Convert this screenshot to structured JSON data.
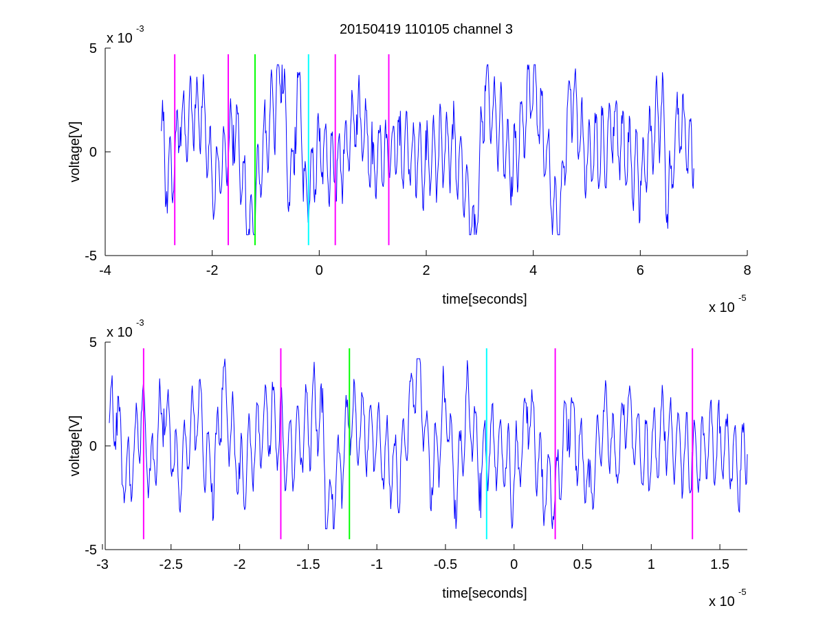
{
  "figure": {
    "title": "20150419 110105 channel 3"
  },
  "chart_data": [
    {
      "type": "line",
      "title": "20150419 110105 channel 3",
      "xlabel": "time[seconds]",
      "ylabel": "voltage[V]",
      "x_exponent_label": "x 10",
      "x_exponent": "-5",
      "y_exponent_label": "x 10",
      "y_exponent": "-3",
      "xlim": [
        -4,
        8
      ],
      "ylim": [
        -5,
        5
      ],
      "xticks": [
        -4,
        -2,
        0,
        2,
        4,
        6,
        8
      ],
      "xtick_labels": [
        "-4",
        "-2",
        "0",
        "2",
        "4",
        "6",
        "8"
      ],
      "yticks": [
        -5,
        0,
        5
      ],
      "ytick_labels": [
        "-5",
        "0",
        "5"
      ],
      "grid": false,
      "signal": {
        "color": "#0000ff",
        "x_start": -2.95,
        "x_end": 7.0,
        "y_min": -4.0,
        "y_max": 4.2,
        "anchors": [
          [
            -2.95,
            1.0
          ],
          [
            -2.85,
            -1.9
          ],
          [
            -2.6,
            1.2
          ],
          [
            -2.2,
            2.2
          ],
          [
            -2.0,
            -1.6
          ],
          [
            -1.6,
            1.3
          ],
          [
            -1.3,
            -4.0
          ],
          [
            -1.0,
            0.9
          ],
          [
            -0.7,
            4.2
          ],
          [
            -0.55,
            -2.6
          ],
          [
            -0.45,
            1.2
          ],
          [
            -0.35,
            3.3
          ],
          [
            -0.3,
            -2.4
          ],
          [
            0.0,
            0.5
          ],
          [
            0.3,
            -1.2
          ],
          [
            0.7,
            1.8
          ],
          [
            1.0,
            -0.6
          ],
          [
            1.5,
            0.3
          ],
          [
            2.0,
            -0.4
          ],
          [
            2.5,
            0.6
          ],
          [
            2.9,
            -4.0
          ],
          [
            3.1,
            3.2
          ],
          [
            3.6,
            -1.2
          ],
          [
            4.0,
            3.7
          ],
          [
            4.45,
            -3.8
          ],
          [
            4.7,
            3.0
          ],
          [
            5.0,
            -0.7
          ],
          [
            5.5,
            1.2
          ],
          [
            6.0,
            -1.4
          ],
          [
            6.4,
            2.4
          ],
          [
            6.5,
            -3.0
          ],
          [
            6.7,
            1.8
          ],
          [
            7.0,
            -0.8
          ]
        ]
      },
      "vlines": [
        {
          "x": -2.7,
          "color": "#ff00ff",
          "ymin": -4.5,
          "ymax": 4.7
        },
        {
          "x": -1.7,
          "color": "#ff00ff",
          "ymin": -4.5,
          "ymax": 4.7
        },
        {
          "x": -1.2,
          "color": "#00ff00",
          "ymin": -4.5,
          "ymax": 4.7
        },
        {
          "x": -0.2,
          "color": "#00ffff",
          "ymin": -4.5,
          "ymax": 4.7
        },
        {
          "x": 0.3,
          "color": "#ff00ff",
          "ymin": -4.5,
          "ymax": 4.7
        },
        {
          "x": 1.3,
          "color": "#ff00ff",
          "ymin": -4.5,
          "ymax": 4.7
        }
      ]
    },
    {
      "type": "line",
      "title": "",
      "xlabel": "time[seconds]",
      "ylabel": "voltage[V]",
      "x_exponent_label": "x 10",
      "x_exponent": "-5",
      "y_exponent_label": "x 10",
      "y_exponent": "-3",
      "xlim": [
        -2.98,
        1.7
      ],
      "ylim": [
        -5,
        5
      ],
      "xticks": [
        -3,
        -2.5,
        -2,
        -1.5,
        -1,
        -0.5,
        0,
        0.5,
        1,
        1.5
      ],
      "xtick_labels": [
        "-3",
        "-2.5",
        "-2",
        "-1.5",
        "-1",
        "-0.5",
        "0",
        "0.5",
        "1",
        "1.5"
      ],
      "yticks": [
        -5,
        0,
        5
      ],
      "ytick_labels": [
        "-5",
        "0",
        "5"
      ],
      "grid": false,
      "signal": {
        "color": "#0000ff",
        "x_start": -2.95,
        "x_end": 1.7,
        "y_min": -4.0,
        "y_max": 4.2,
        "anchors": [
          [
            -2.95,
            1.1
          ],
          [
            -2.9,
            1.6
          ],
          [
            -2.83,
            -2.1
          ],
          [
            -2.72,
            1.6
          ],
          [
            -2.65,
            -1.2
          ],
          [
            -2.55,
            1.8
          ],
          [
            -2.45,
            -1.5
          ],
          [
            -2.3,
            1.9
          ],
          [
            -2.2,
            -1.8
          ],
          [
            -2.13,
            2.8
          ],
          [
            -2.0,
            -1.6
          ],
          [
            -1.8,
            1.6
          ],
          [
            -1.65,
            -0.3
          ],
          [
            -1.4,
            1.6
          ],
          [
            -1.37,
            -4.0
          ],
          [
            -1.2,
            1.3
          ],
          [
            -1.0,
            0.2
          ],
          [
            -0.85,
            -1.6
          ],
          [
            -0.7,
            4.2
          ],
          [
            -0.6,
            -2.0
          ],
          [
            -0.5,
            2.3
          ],
          [
            -0.43,
            -2.6
          ],
          [
            -0.35,
            2.4
          ],
          [
            -0.25,
            -1.3
          ],
          [
            -0.15,
            0.5
          ],
          [
            0.0,
            -1.7
          ],
          [
            0.1,
            1.9
          ],
          [
            0.2,
            -1.5
          ],
          [
            0.3,
            -2.3
          ],
          [
            0.4,
            1.3
          ],
          [
            0.55,
            -2.0
          ],
          [
            0.65,
            1.7
          ],
          [
            0.75,
            -1.4
          ],
          [
            0.8,
            2.0
          ],
          [
            0.95,
            -0.5
          ],
          [
            1.1,
            0.7
          ],
          [
            1.3,
            -0.5
          ],
          [
            1.5,
            0.6
          ],
          [
            1.65,
            -1.2
          ],
          [
            1.7,
            -0.4
          ]
        ]
      },
      "vlines": [
        {
          "x": -2.7,
          "color": "#ff00ff",
          "ymin": -4.5,
          "ymax": 4.7
        },
        {
          "x": -1.7,
          "color": "#ff00ff",
          "ymin": -4.5,
          "ymax": 4.7
        },
        {
          "x": -1.2,
          "color": "#00ff00",
          "ymin": -4.5,
          "ymax": 4.7
        },
        {
          "x": -0.2,
          "color": "#00ffff",
          "ymin": -4.5,
          "ymax": 4.7
        },
        {
          "x": 0.3,
          "color": "#ff00ff",
          "ymin": -4.5,
          "ymax": 4.7
        },
        {
          "x": 1.3,
          "color": "#ff00ff",
          "ymin": -4.5,
          "ymax": 4.7
        }
      ]
    }
  ]
}
